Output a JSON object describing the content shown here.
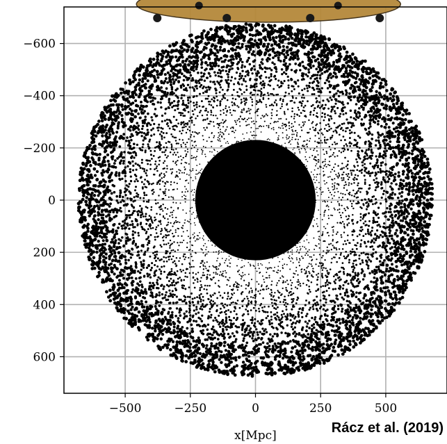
{
  "chart_data": {
    "type": "scatter",
    "title": "",
    "xlabel": "x[Mpc]",
    "ylabel": "",
    "xlim": [
      -735,
      735
    ],
    "ylim": [
      -740,
      740
    ],
    "xticks": [
      -500,
      -250,
      0,
      250,
      500
    ],
    "yticks": [
      -600,
      -400,
      -200,
      0,
      200,
      400,
      600
    ],
    "xtick_labels": [
      "−500",
      "−250",
      "0",
      "250",
      "500"
    ],
    "ytick_labels": [
      "600",
      "400",
      "200",
      "0",
      "−200",
      "−400",
      "−600"
    ],
    "grid": true,
    "series": [
      {
        "description_only": false,
        "center": [
          0,
          0
        ],
        "radius": 680,
        "distribution": "dense core, sparse edge",
        "color": "#000000"
      }
    ],
    "overlay_sphere_color": "#b5893a"
  },
  "credit": "Rácz et al. (2019)"
}
